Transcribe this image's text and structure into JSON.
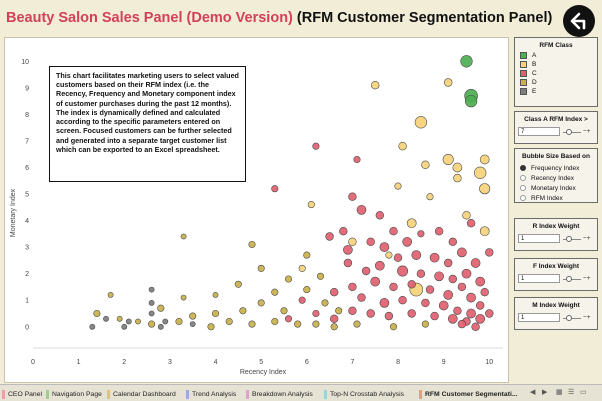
{
  "title": {
    "main": "Beauty Salon Sales Panel (Demo Version)",
    "sub": "(RFM Customer Segmentation Panel)"
  },
  "back_icon": "back-arrow-icon",
  "info_text": "This chart facilitates marketing users to select valued customers based on their RFM index (i.e. the Recency, Frequency and Monetary component index of  customer purchases during the past 12 months).  The index is dynamically defined and calculated according to the specific parameters entered on screen. Focused customers can be further selected and generated into a separate target customer list which can be exported to an Excel spreadsheet.",
  "legend": {
    "title": "RFM Class",
    "items": [
      {
        "label": "A",
        "color": "#4caf50"
      },
      {
        "label": "B",
        "color": "#f5d27a"
      },
      {
        "label": "C",
        "color": "#e0606f"
      },
      {
        "label": "D",
        "color": "#c9b04a"
      },
      {
        "label": "E",
        "color": "#7d7d7d"
      }
    ]
  },
  "class_a_filter": {
    "label": "Class A RFM  Index >",
    "value": "7"
  },
  "bubble_size": {
    "title": "Bubble Size Based on",
    "options": [
      "Frequency Index",
      "Recency Index",
      "Monetary Index",
      "RFM Index"
    ],
    "selected": "Frequency Index"
  },
  "weights": {
    "r": {
      "label": "R Index Weight",
      "value": "1"
    },
    "f": {
      "label": "F Index Weight",
      "value": "1"
    },
    "m": {
      "label": "M Index Weight",
      "value": "1"
    }
  },
  "tabs": [
    {
      "label": "CEO Panel",
      "color": "#e8a0a8"
    },
    {
      "label": "Navigation Page",
      "color": "#9ecf8c"
    },
    {
      "label": "Calendar Dashboard",
      "color": "#e8c070"
    },
    {
      "label": "Trend Analysis",
      "color": "#a0a8e0"
    },
    {
      "label": "Breakdown Analysis",
      "color": "#e0a0d0"
    },
    {
      "label": "Top-N Crosstab Analysis",
      "color": "#a0d0d8"
    },
    {
      "label": "RFM Customer Segmentati...",
      "color": "#e8a070"
    }
  ],
  "active_tab": "RFM Customer Segmentati...",
  "chart_data": {
    "type": "scatter",
    "xlabel": "Recency Index",
    "ylabel": "Monetary Index",
    "xlim": [
      0,
      10.3
    ],
    "ylim": [
      -0.8,
      10.5
    ],
    "xticks": [
      0,
      1,
      2,
      3,
      4,
      5,
      6,
      7,
      8,
      9,
      10
    ],
    "yticks": [
      0,
      1,
      2,
      3,
      4,
      5,
      6,
      7,
      8,
      9,
      10
    ],
    "grid": false,
    "points": [
      {
        "x": 9.5,
        "y": 10,
        "size": 7,
        "class": "A"
      },
      {
        "x": 9.6,
        "y": 8.7,
        "size": 8,
        "class": "A"
      },
      {
        "x": 9.6,
        "y": 8.5,
        "size": 7,
        "class": "A"
      },
      {
        "x": 9.1,
        "y": 9.2,
        "size": 4,
        "class": "B"
      },
      {
        "x": 7.5,
        "y": 9.1,
        "size": 4,
        "class": "B"
      },
      {
        "x": 8.5,
        "y": 7.7,
        "size": 7,
        "class": "B"
      },
      {
        "x": 8.1,
        "y": 6.8,
        "size": 4,
        "class": "B"
      },
      {
        "x": 8.6,
        "y": 6.1,
        "size": 4,
        "class": "B"
      },
      {
        "x": 9.1,
        "y": 6.3,
        "size": 6,
        "class": "B"
      },
      {
        "x": 9.3,
        "y": 6.0,
        "size": 5,
        "class": "B"
      },
      {
        "x": 9.8,
        "y": 5.8,
        "size": 7,
        "class": "B"
      },
      {
        "x": 9.9,
        "y": 6.3,
        "size": 5,
        "class": "B"
      },
      {
        "x": 9.9,
        "y": 5.2,
        "size": 6,
        "class": "B"
      },
      {
        "x": 9.3,
        "y": 5.6,
        "size": 4,
        "class": "B"
      },
      {
        "x": 8.0,
        "y": 5.3,
        "size": 3,
        "class": "B"
      },
      {
        "x": 8.3,
        "y": 3.9,
        "size": 5,
        "class": "B"
      },
      {
        "x": 8.7,
        "y": 4.9,
        "size": 3,
        "class": "B"
      },
      {
        "x": 9.5,
        "y": 4.2,
        "size": 4,
        "class": "B"
      },
      {
        "x": 9.9,
        "y": 3.6,
        "size": 5,
        "class": "B"
      },
      {
        "x": 8.4,
        "y": 1.4,
        "size": 8,
        "class": "B"
      },
      {
        "x": 7.0,
        "y": 3.2,
        "size": 4,
        "class": "B"
      },
      {
        "x": 7.8,
        "y": 2.7,
        "size": 3,
        "class": "B"
      },
      {
        "x": 5.9,
        "y": 2.2,
        "size": 3,
        "class": "B"
      },
      {
        "x": 6.1,
        "y": 4.6,
        "size": 3,
        "class": "B"
      },
      {
        "x": 7.1,
        "y": 6.3,
        "size": 3,
        "class": "C"
      },
      {
        "x": 6.2,
        "y": 6.8,
        "size": 3,
        "class": "C"
      },
      {
        "x": 5.3,
        "y": 5.2,
        "size": 3,
        "class": "C"
      },
      {
        "x": 7.0,
        "y": 4.9,
        "size": 4,
        "class": "C"
      },
      {
        "x": 7.2,
        "y": 4.4,
        "size": 5,
        "class": "C"
      },
      {
        "x": 7.6,
        "y": 4.2,
        "size": 4,
        "class": "C"
      },
      {
        "x": 6.8,
        "y": 3.6,
        "size": 4,
        "class": "C"
      },
      {
        "x": 6.5,
        "y": 3.4,
        "size": 4,
        "class": "C"
      },
      {
        "x": 6.9,
        "y": 2.9,
        "size": 5,
        "class": "C"
      },
      {
        "x": 7.4,
        "y": 3.2,
        "size": 4,
        "class": "C"
      },
      {
        "x": 7.9,
        "y": 3.6,
        "size": 4,
        "class": "C"
      },
      {
        "x": 8.2,
        "y": 3.2,
        "size": 5,
        "class": "C"
      },
      {
        "x": 8.5,
        "y": 3.5,
        "size": 3,
        "class": "C"
      },
      {
        "x": 8.9,
        "y": 3.6,
        "size": 4,
        "class": "C"
      },
      {
        "x": 9.2,
        "y": 3.2,
        "size": 4,
        "class": "C"
      },
      {
        "x": 9.6,
        "y": 3.9,
        "size": 4,
        "class": "C"
      },
      {
        "x": 7.7,
        "y": 3.0,
        "size": 5,
        "class": "C"
      },
      {
        "x": 8.0,
        "y": 2.6,
        "size": 4,
        "class": "C"
      },
      {
        "x": 8.4,
        "y": 2.7,
        "size": 5,
        "class": "C"
      },
      {
        "x": 8.8,
        "y": 2.6,
        "size": 5,
        "class": "C"
      },
      {
        "x": 9.1,
        "y": 2.4,
        "size": 4,
        "class": "C"
      },
      {
        "x": 9.4,
        "y": 2.8,
        "size": 5,
        "class": "C"
      },
      {
        "x": 9.7,
        "y": 2.4,
        "size": 5,
        "class": "C"
      },
      {
        "x": 10.0,
        "y": 2.8,
        "size": 4,
        "class": "C"
      },
      {
        "x": 7.3,
        "y": 2.1,
        "size": 4,
        "class": "C"
      },
      {
        "x": 7.6,
        "y": 2.3,
        "size": 5,
        "class": "C"
      },
      {
        "x": 8.1,
        "y": 2.1,
        "size": 6,
        "class": "C"
      },
      {
        "x": 8.5,
        "y": 2.0,
        "size": 4,
        "class": "C"
      },
      {
        "x": 8.9,
        "y": 1.9,
        "size": 5,
        "class": "C"
      },
      {
        "x": 9.2,
        "y": 1.8,
        "size": 4,
        "class": "C"
      },
      {
        "x": 9.5,
        "y": 2.0,
        "size": 5,
        "class": "C"
      },
      {
        "x": 9.8,
        "y": 1.7,
        "size": 5,
        "class": "C"
      },
      {
        "x": 7.0,
        "y": 1.5,
        "size": 4,
        "class": "C"
      },
      {
        "x": 7.5,
        "y": 1.7,
        "size": 5,
        "class": "C"
      },
      {
        "x": 7.9,
        "y": 1.5,
        "size": 4,
        "class": "C"
      },
      {
        "x": 8.3,
        "y": 1.6,
        "size": 4,
        "class": "C"
      },
      {
        "x": 8.7,
        "y": 1.4,
        "size": 4,
        "class": "C"
      },
      {
        "x": 9.1,
        "y": 1.2,
        "size": 5,
        "class": "C"
      },
      {
        "x": 9.4,
        "y": 1.5,
        "size": 4,
        "class": "C"
      },
      {
        "x": 9.6,
        "y": 1.1,
        "size": 5,
        "class": "C"
      },
      {
        "x": 9.9,
        "y": 1.3,
        "size": 4,
        "class": "C"
      },
      {
        "x": 6.6,
        "y": 1.3,
        "size": 4,
        "class": "C"
      },
      {
        "x": 7.2,
        "y": 1.1,
        "size": 4,
        "class": "C"
      },
      {
        "x": 7.7,
        "y": 0.9,
        "size": 5,
        "class": "C"
      },
      {
        "x": 8.1,
        "y": 1.0,
        "size": 4,
        "class": "C"
      },
      {
        "x": 8.6,
        "y": 0.9,
        "size": 4,
        "class": "C"
      },
      {
        "x": 9.0,
        "y": 0.8,
        "size": 5,
        "class": "C"
      },
      {
        "x": 9.3,
        "y": 0.6,
        "size": 4,
        "class": "C"
      },
      {
        "x": 9.6,
        "y": 0.5,
        "size": 5,
        "class": "C"
      },
      {
        "x": 9.8,
        "y": 0.8,
        "size": 4,
        "class": "C"
      },
      {
        "x": 7.0,
        "y": 0.6,
        "size": 4,
        "class": "C"
      },
      {
        "x": 7.4,
        "y": 0.5,
        "size": 4,
        "class": "C"
      },
      {
        "x": 7.8,
        "y": 0.4,
        "size": 4,
        "class": "C"
      },
      {
        "x": 8.3,
        "y": 0.5,
        "size": 4,
        "class": "C"
      },
      {
        "x": 8.8,
        "y": 0.4,
        "size": 4,
        "class": "C"
      },
      {
        "x": 9.2,
        "y": 0.3,
        "size": 5,
        "class": "C"
      },
      {
        "x": 9.5,
        "y": 0.2,
        "size": 4,
        "class": "C"
      },
      {
        "x": 9.8,
        "y": 0.3,
        "size": 5,
        "class": "C"
      },
      {
        "x": 10.0,
        "y": 0.5,
        "size": 4,
        "class": "C"
      },
      {
        "x": 6.2,
        "y": 0.5,
        "size": 3,
        "class": "C"
      },
      {
        "x": 6.6,
        "y": 0.3,
        "size": 4,
        "class": "C"
      },
      {
        "x": 5.6,
        "y": 0.3,
        "size": 3,
        "class": "C"
      },
      {
        "x": 5.9,
        "y": 1.0,
        "size": 3,
        "class": "C"
      },
      {
        "x": 6.9,
        "y": 2.4,
        "size": 4,
        "class": "C"
      },
      {
        "x": 9.7,
        "y": 0.0,
        "size": 4,
        "class": "C"
      },
      {
        "x": 9.4,
        "y": 0.1,
        "size": 4,
        "class": "C"
      },
      {
        "x": 3.3,
        "y": 3.4,
        "size": 2,
        "class": "D"
      },
      {
        "x": 4.8,
        "y": 3.1,
        "size": 3,
        "class": "D"
      },
      {
        "x": 5.0,
        "y": 2.2,
        "size": 3,
        "class": "D"
      },
      {
        "x": 4.5,
        "y": 1.6,
        "size": 3,
        "class": "D"
      },
      {
        "x": 4.0,
        "y": 1.2,
        "size": 2,
        "class": "D"
      },
      {
        "x": 3.3,
        "y": 1.1,
        "size": 2,
        "class": "D"
      },
      {
        "x": 2.8,
        "y": 0.7,
        "size": 3,
        "class": "D"
      },
      {
        "x": 1.7,
        "y": 1.2,
        "size": 2,
        "class": "D"
      },
      {
        "x": 1.4,
        "y": 0.5,
        "size": 3,
        "class": "D"
      },
      {
        "x": 3.5,
        "y": 0.4,
        "size": 3,
        "class": "D"
      },
      {
        "x": 4.0,
        "y": 0.5,
        "size": 3,
        "class": "D"
      },
      {
        "x": 4.3,
        "y": 0.2,
        "size": 3,
        "class": "D"
      },
      {
        "x": 4.6,
        "y": 0.6,
        "size": 3,
        "class": "D"
      },
      {
        "x": 5.0,
        "y": 0.9,
        "size": 3,
        "class": "D"
      },
      {
        "x": 5.3,
        "y": 1.3,
        "size": 3,
        "class": "D"
      },
      {
        "x": 5.6,
        "y": 1.8,
        "size": 3,
        "class": "D"
      },
      {
        "x": 6.0,
        "y": 2.7,
        "size": 3,
        "class": "D"
      },
      {
        "x": 6.3,
        "y": 1.9,
        "size": 3,
        "class": "D"
      },
      {
        "x": 6.0,
        "y": 1.4,
        "size": 3,
        "class": "D"
      },
      {
        "x": 5.3,
        "y": 0.2,
        "size": 3,
        "class": "D"
      },
      {
        "x": 5.8,
        "y": 0.1,
        "size": 3,
        "class": "D"
      },
      {
        "x": 6.2,
        "y": 0.1,
        "size": 3,
        "class": "D"
      },
      {
        "x": 6.6,
        "y": 0.0,
        "size": 3,
        "class": "D"
      },
      {
        "x": 7.1,
        "y": 0.1,
        "size": 3,
        "class": "D"
      },
      {
        "x": 4.8,
        "y": 0.1,
        "size": 3,
        "class": "D"
      },
      {
        "x": 3.9,
        "y": 0.0,
        "size": 3,
        "class": "D"
      },
      {
        "x": 3.2,
        "y": 0.2,
        "size": 3,
        "class": "D"
      },
      {
        "x": 2.3,
        "y": 0.2,
        "size": 2,
        "class": "D"
      },
      {
        "x": 2.6,
        "y": 0.1,
        "size": 3,
        "class": "D"
      },
      {
        "x": 1.9,
        "y": 0.3,
        "size": 2,
        "class": "D"
      },
      {
        "x": 6.7,
        "y": 0.6,
        "size": 3,
        "class": "D"
      },
      {
        "x": 5.5,
        "y": 0.6,
        "size": 3,
        "class": "D"
      },
      {
        "x": 7.9,
        "y": 0.0,
        "size": 3,
        "class": "D"
      },
      {
        "x": 8.6,
        "y": 0.1,
        "size": 3,
        "class": "D"
      },
      {
        "x": 6.4,
        "y": 0.9,
        "size": 3,
        "class": "D"
      },
      {
        "x": 2.6,
        "y": 1.4,
        "size": 2,
        "class": "E"
      },
      {
        "x": 2.6,
        "y": 0.9,
        "size": 2,
        "class": "E"
      },
      {
        "x": 2.9,
        "y": 0.2,
        "size": 2,
        "class": "E"
      },
      {
        "x": 2.1,
        "y": 0.2,
        "size": 2,
        "class": "E"
      },
      {
        "x": 1.6,
        "y": 0.3,
        "size": 2,
        "class": "E"
      },
      {
        "x": 1.3,
        "y": 0.0,
        "size": 2,
        "class": "E"
      },
      {
        "x": 2.6,
        "y": 0.5,
        "size": 2,
        "class": "E"
      },
      {
        "x": 3.5,
        "y": 0.1,
        "size": 2,
        "class": "E"
      },
      {
        "x": 2.0,
        "y": 0.0,
        "size": 2,
        "class": "E"
      },
      {
        "x": 2.8,
        "y": 0.0,
        "size": 2,
        "class": "E"
      }
    ]
  }
}
